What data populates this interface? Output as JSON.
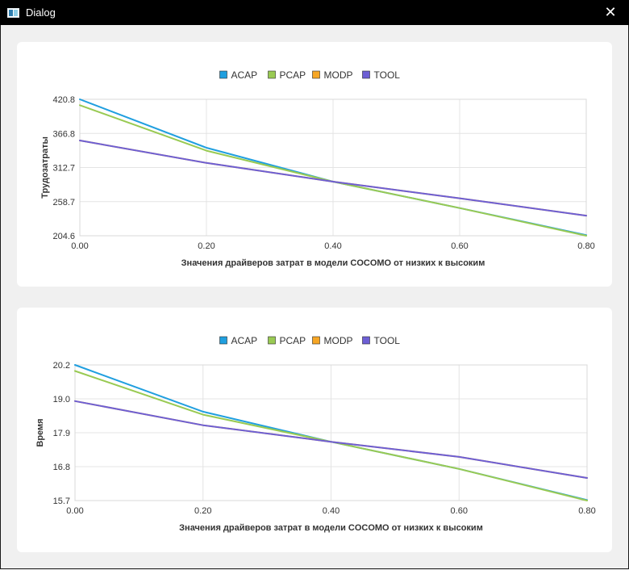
{
  "window": {
    "title": "Dialog",
    "close_icon": "✕"
  },
  "chart_data": [
    {
      "type": "line",
      "title": "",
      "xlabel": "Значения драйверов затрат в модели COCOMO от низких к высоким",
      "ylabel": "Трудозатраты",
      "x": [
        0.0,
        0.2,
        0.4,
        0.6,
        0.8
      ],
      "x_tick_labels": [
        "0.00",
        "0.20",
        "0.40",
        "0.60",
        "0.80"
      ],
      "y_tick_labels": [
        "420.8",
        "366.8",
        "312.7",
        "258.7",
        "204.6"
      ],
      "ylim": [
        204.6,
        420.8
      ],
      "xlim": [
        0.0,
        0.8
      ],
      "grid": true,
      "legend_position": "top",
      "series": [
        {
          "name": "ACAP",
          "color": "#209fdf",
          "values": [
            420.8,
            344.0,
            290.3,
            248.5,
            205.6
          ]
        },
        {
          "name": "PCAP",
          "color": "#99ca53",
          "values": [
            411.5,
            339.5,
            290.3,
            248.5,
            204.6
          ]
        },
        {
          "name": "MODP",
          "color": "#f6a625",
          "values": [
            355.5,
            320.0,
            290.3,
            264.0,
            236.5
          ]
        },
        {
          "name": "TOOL",
          "color": "#6d5fd5",
          "values": [
            355.5,
            320.0,
            290.3,
            264.0,
            236.5
          ]
        }
      ]
    },
    {
      "type": "line",
      "title": "",
      "xlabel": "Значения драйверов затрат в модели COCOMO от низких к высоким",
      "ylabel": "Время",
      "x": [
        0.0,
        0.2,
        0.4,
        0.6,
        0.8
      ],
      "x_tick_labels": [
        "0.00",
        "0.20",
        "0.40",
        "0.60",
        "0.80"
      ],
      "y_tick_labels": [
        "20.2",
        "19.0",
        "17.9",
        "16.8",
        "15.7"
      ],
      "ylim": [
        15.7,
        20.2
      ],
      "xlim": [
        0.0,
        0.8
      ],
      "grid": true,
      "legend_position": "top",
      "series": [
        {
          "name": "ACAP",
          "color": "#209fdf",
          "values": [
            20.2,
            18.65,
            17.65,
            16.75,
            15.72
          ]
        },
        {
          "name": "PCAP",
          "color": "#99ca53",
          "values": [
            20.0,
            18.55,
            17.65,
            16.75,
            15.7
          ]
        },
        {
          "name": "MODP",
          "color": "#f6a625",
          "values": [
            19.0,
            18.2,
            17.65,
            17.15,
            16.45
          ]
        },
        {
          "name": "TOOL",
          "color": "#6d5fd5",
          "values": [
            19.0,
            18.2,
            17.65,
            17.15,
            16.45
          ]
        }
      ]
    }
  ]
}
